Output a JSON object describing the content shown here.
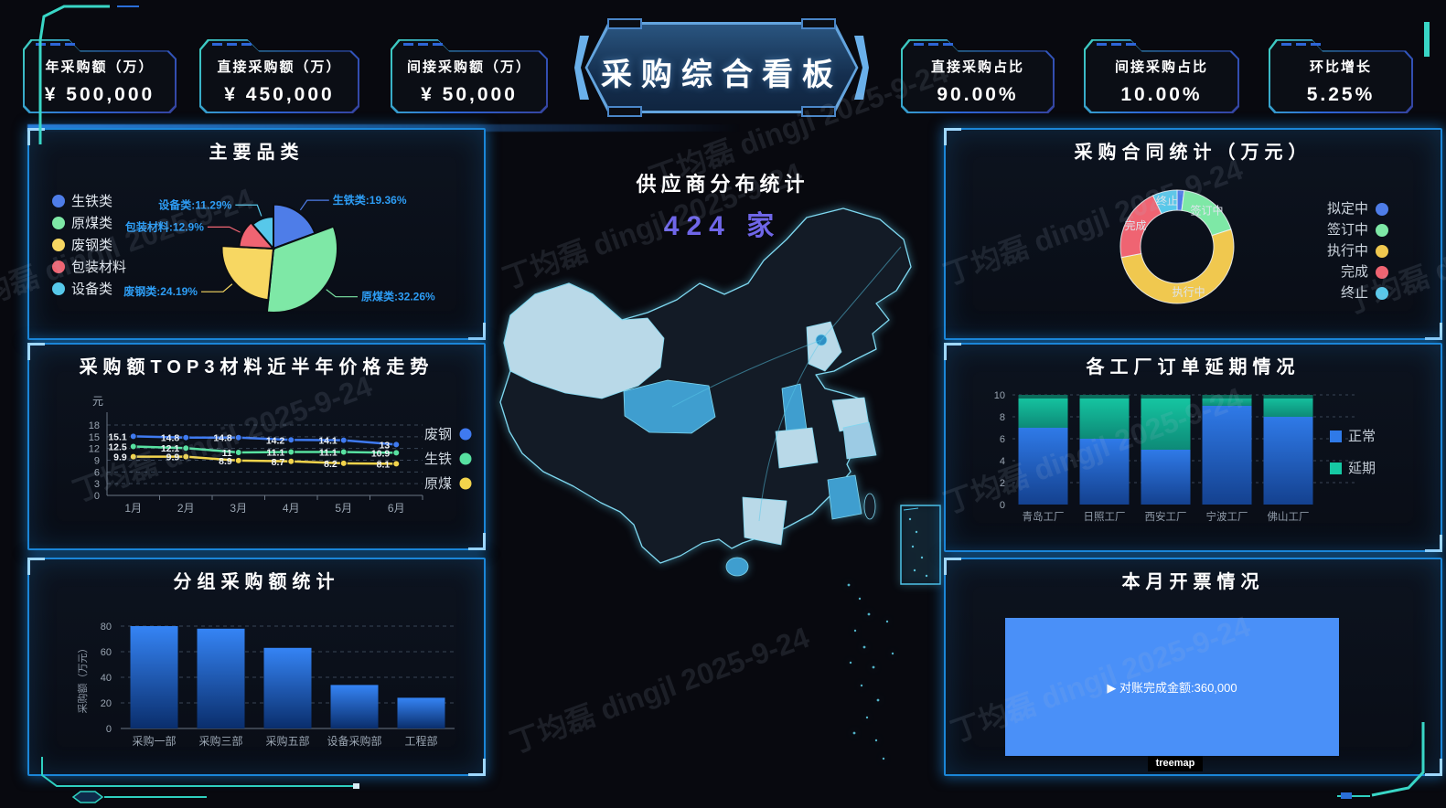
{
  "watermark": {
    "text": "丁均磊 dingjl 2025-9-24"
  },
  "header": {
    "title": "采购综合看板"
  },
  "kpi_cards": [
    {
      "label": "年采购额（万）",
      "value": "¥ 500,000"
    },
    {
      "label": "直接采购额（万）",
      "value": "¥ 450,000"
    },
    {
      "label": "间接采购额（万）",
      "value": "¥ 50,000"
    },
    {
      "label": "直接采购占比",
      "value": "90.00%"
    },
    {
      "label": "间接采购占比",
      "value": "10.00%"
    },
    {
      "label": "环比增长",
      "value": "5.25%"
    }
  ],
  "map": {
    "title": "供应商分布统计",
    "count": "424",
    "unit": "家",
    "count_color": "#6f66e8"
  },
  "chart_data": [
    {
      "id": "category_rose",
      "type": "pie",
      "variant": "rose",
      "title": "主要品类",
      "labels": [
        "生铁类",
        "原煤类",
        "废钢类",
        "包装材料",
        "设备类"
      ],
      "values": [
        19.36,
        32.26,
        24.19,
        12.9,
        11.29
      ],
      "label_texts": [
        "生铁类:19.36%",
        "原煤类:32.26%",
        "废钢类:24.19%",
        "包装材料:12.9%",
        "设备类:11.29%"
      ],
      "colors": [
        "#4e7de8",
        "#7ee8a6",
        "#f7d762",
        "#ef6472",
        "#57c8ea"
      ],
      "label_color": "#2d9df5",
      "legend_position": "left"
    },
    {
      "id": "price_trend",
      "type": "line",
      "title": "采购额TOP3材料近半年价格走势",
      "ylabel": "元",
      "x": [
        "1月",
        "2月",
        "3月",
        "4月",
        "5月",
        "6月"
      ],
      "ylim": [
        0,
        18
      ],
      "yticks": [
        0,
        3,
        6,
        9,
        12,
        15,
        18
      ],
      "series": [
        {
          "name": "废钢",
          "color": "#3f7af0",
          "values": [
            15.1,
            14.8,
            14.8,
            14.2,
            14.1,
            13
          ]
        },
        {
          "name": "生铁",
          "color": "#57e0a0",
          "values": [
            12.5,
            12.1,
            11,
            11.1,
            11.1,
            10.9
          ]
        },
        {
          "name": "原煤",
          "color": "#f2d44c",
          "values": [
            9.9,
            9.9,
            8.9,
            8.7,
            8.2,
            8.1
          ]
        }
      ],
      "grid": true,
      "legend_position": "right"
    },
    {
      "id": "group_purchase",
      "type": "bar",
      "title": "分组采购额统计",
      "ylabel": "采购额（万元）",
      "categories": [
        "采购一部",
        "采购三部",
        "采购五部",
        "设备采购部",
        "工程部"
      ],
      "values": [
        80,
        78,
        63,
        34,
        24
      ],
      "ylim": [
        0,
        80
      ],
      "yticks": [
        0,
        20,
        40,
        60,
        80
      ],
      "bar_color_top": "#3584f5",
      "bar_color_bottom": "#0a2e6c",
      "grid": true
    },
    {
      "id": "contract_stats",
      "type": "pie",
      "variant": "donut",
      "title": "采购合同统计（万元）",
      "labels": [
        "拟定中",
        "签订中",
        "执行中",
        "完成",
        "终止"
      ],
      "values": [
        2,
        18,
        52,
        21,
        7
      ],
      "colors": [
        "#4e7de8",
        "#7ee8a6",
        "#f0c84f",
        "#ef6472",
        "#57c8ea"
      ],
      "slice_labels": [
        "",
        "签订中",
        "执行中",
        "完成",
        "终止"
      ],
      "legend_position": "right"
    },
    {
      "id": "factory_delay",
      "type": "bar",
      "variant": "stacked",
      "title": "各工厂订单延期情况",
      "categories": [
        "青岛工厂",
        "日照工厂",
        "西安工厂",
        "宁波工厂",
        "佛山工厂"
      ],
      "series": [
        {
          "name": "正常",
          "color_top": "#2f7ae8",
          "color_bottom": "#14418f",
          "values": [
            7,
            6,
            5,
            9,
            8
          ]
        },
        {
          "name": "延期",
          "color_top": "#16c9a4",
          "color_bottom": "#0d8a77",
          "values": [
            3,
            4,
            5,
            1,
            2
          ]
        }
      ],
      "ylim": [
        0,
        10
      ],
      "yticks": [
        0,
        2,
        4,
        6,
        8,
        10
      ],
      "grid": true,
      "legend_position": "right"
    },
    {
      "id": "invoice_treemap",
      "type": "treemap",
      "title": "本月开票情况",
      "node_label": "▶ 对账完成金额:360,000",
      "node_value": "360,000",
      "breadcrumb": "treemap",
      "color": "#4a90f8"
    }
  ]
}
